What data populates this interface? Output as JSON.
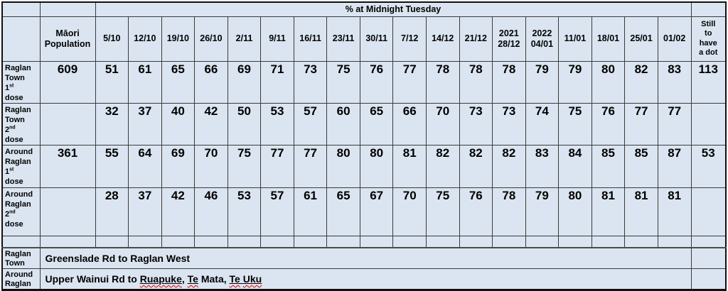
{
  "colors": {
    "cell_background": "#dbe5f1",
    "inner_border": "#3a3a3a",
    "outer_border": "#101010",
    "text": "#000000",
    "spellcheck_squiggle": "#e00000"
  },
  "table": {
    "title": "% at Midnight Tuesday",
    "population_header": "Māori\nPopulation",
    "still_header": "Still\nto\nhave\na dot",
    "date_headers": [
      "5/10",
      "12/10",
      "19/10",
      "26/10",
      "2/11",
      "9/11",
      "16/11",
      "23/11",
      "30/11",
      "7/12",
      "14/12",
      "21/12",
      "2021\n28/12",
      "2022\n04/01",
      "11/01",
      "18/01",
      "25/01",
      "01/02"
    ],
    "rows": [
      {
        "name": "raglan-town-1st-dose",
        "label_lines": [
          "Raglan",
          "Town",
          {
            "text": "1",
            "sup": "st"
          },
          "dose"
        ],
        "population": "609",
        "values": [
          "51",
          "61",
          "65",
          "66",
          "69",
          "71",
          "73",
          "75",
          "76",
          "77",
          "78",
          "78",
          "78",
          "79",
          "79",
          "80",
          "82",
          "83"
        ],
        "still": "113"
      },
      {
        "name": "raglan-town-2nd-dose",
        "label_lines": [
          "Raglan",
          "Town",
          {
            "text": "2",
            "sup": "nd"
          },
          "dose"
        ],
        "population": "",
        "values": [
          "32",
          "37",
          "40",
          "42",
          "50",
          "53",
          "57",
          "60",
          "65",
          "66",
          "70",
          "73",
          "73",
          "74",
          "75",
          "76",
          "77",
          "77"
        ],
        "still": ""
      },
      {
        "name": "around-raglan-1st-dose",
        "label_lines": [
          "Around",
          "Raglan",
          {
            "text": "1",
            "sup": "st"
          },
          "dose"
        ],
        "population": "361",
        "values": [
          "55",
          "64",
          "69",
          "70",
          "75",
          "77",
          "77",
          "80",
          "80",
          "81",
          "82",
          "82",
          "82",
          "83",
          "84",
          "85",
          "85",
          "87"
        ],
        "still": "53"
      },
      {
        "name": "around-raglan-2nd-dose",
        "label_lines": [
          "Around",
          "Raglan",
          {
            "text": "2",
            "sup": "nd"
          },
          "dose"
        ],
        "population": "",
        "values": [
          "28",
          "37",
          "42",
          "46",
          "53",
          "57",
          "61",
          "65",
          "67",
          "70",
          "75",
          "76",
          "78",
          "79",
          "80",
          "81",
          "81",
          "81"
        ],
        "still": ""
      }
    ],
    "footer_rows": [
      {
        "name": "raglan-town-area",
        "label_lines": [
          "Raglan",
          "Town"
        ],
        "parts": [
          {
            "text": "Greenslade Rd to Raglan West",
            "u": false,
            "sq": false
          }
        ]
      },
      {
        "name": "around-raglan-area",
        "label_lines": [
          "Around",
          "Raglan"
        ],
        "parts": [
          {
            "text": "Upper Wainui Rd to ",
            "u": false,
            "sq": false
          },
          {
            "text": "Ruapuke",
            "u": true,
            "sq": true
          },
          {
            "text": ",",
            "u": true,
            "sq": false
          },
          {
            "text": " ",
            "u": false,
            "sq": false
          },
          {
            "text": "Te",
            "u": true,
            "sq": true
          },
          {
            "text": " Mata, ",
            "u": false,
            "sq": false
          },
          {
            "text": "Te",
            "u": true,
            "sq": true
          },
          {
            "text": " ",
            "u": true,
            "sq": false
          },
          {
            "text": "Uku",
            "u": true,
            "sq": true
          }
        ]
      }
    ]
  }
}
